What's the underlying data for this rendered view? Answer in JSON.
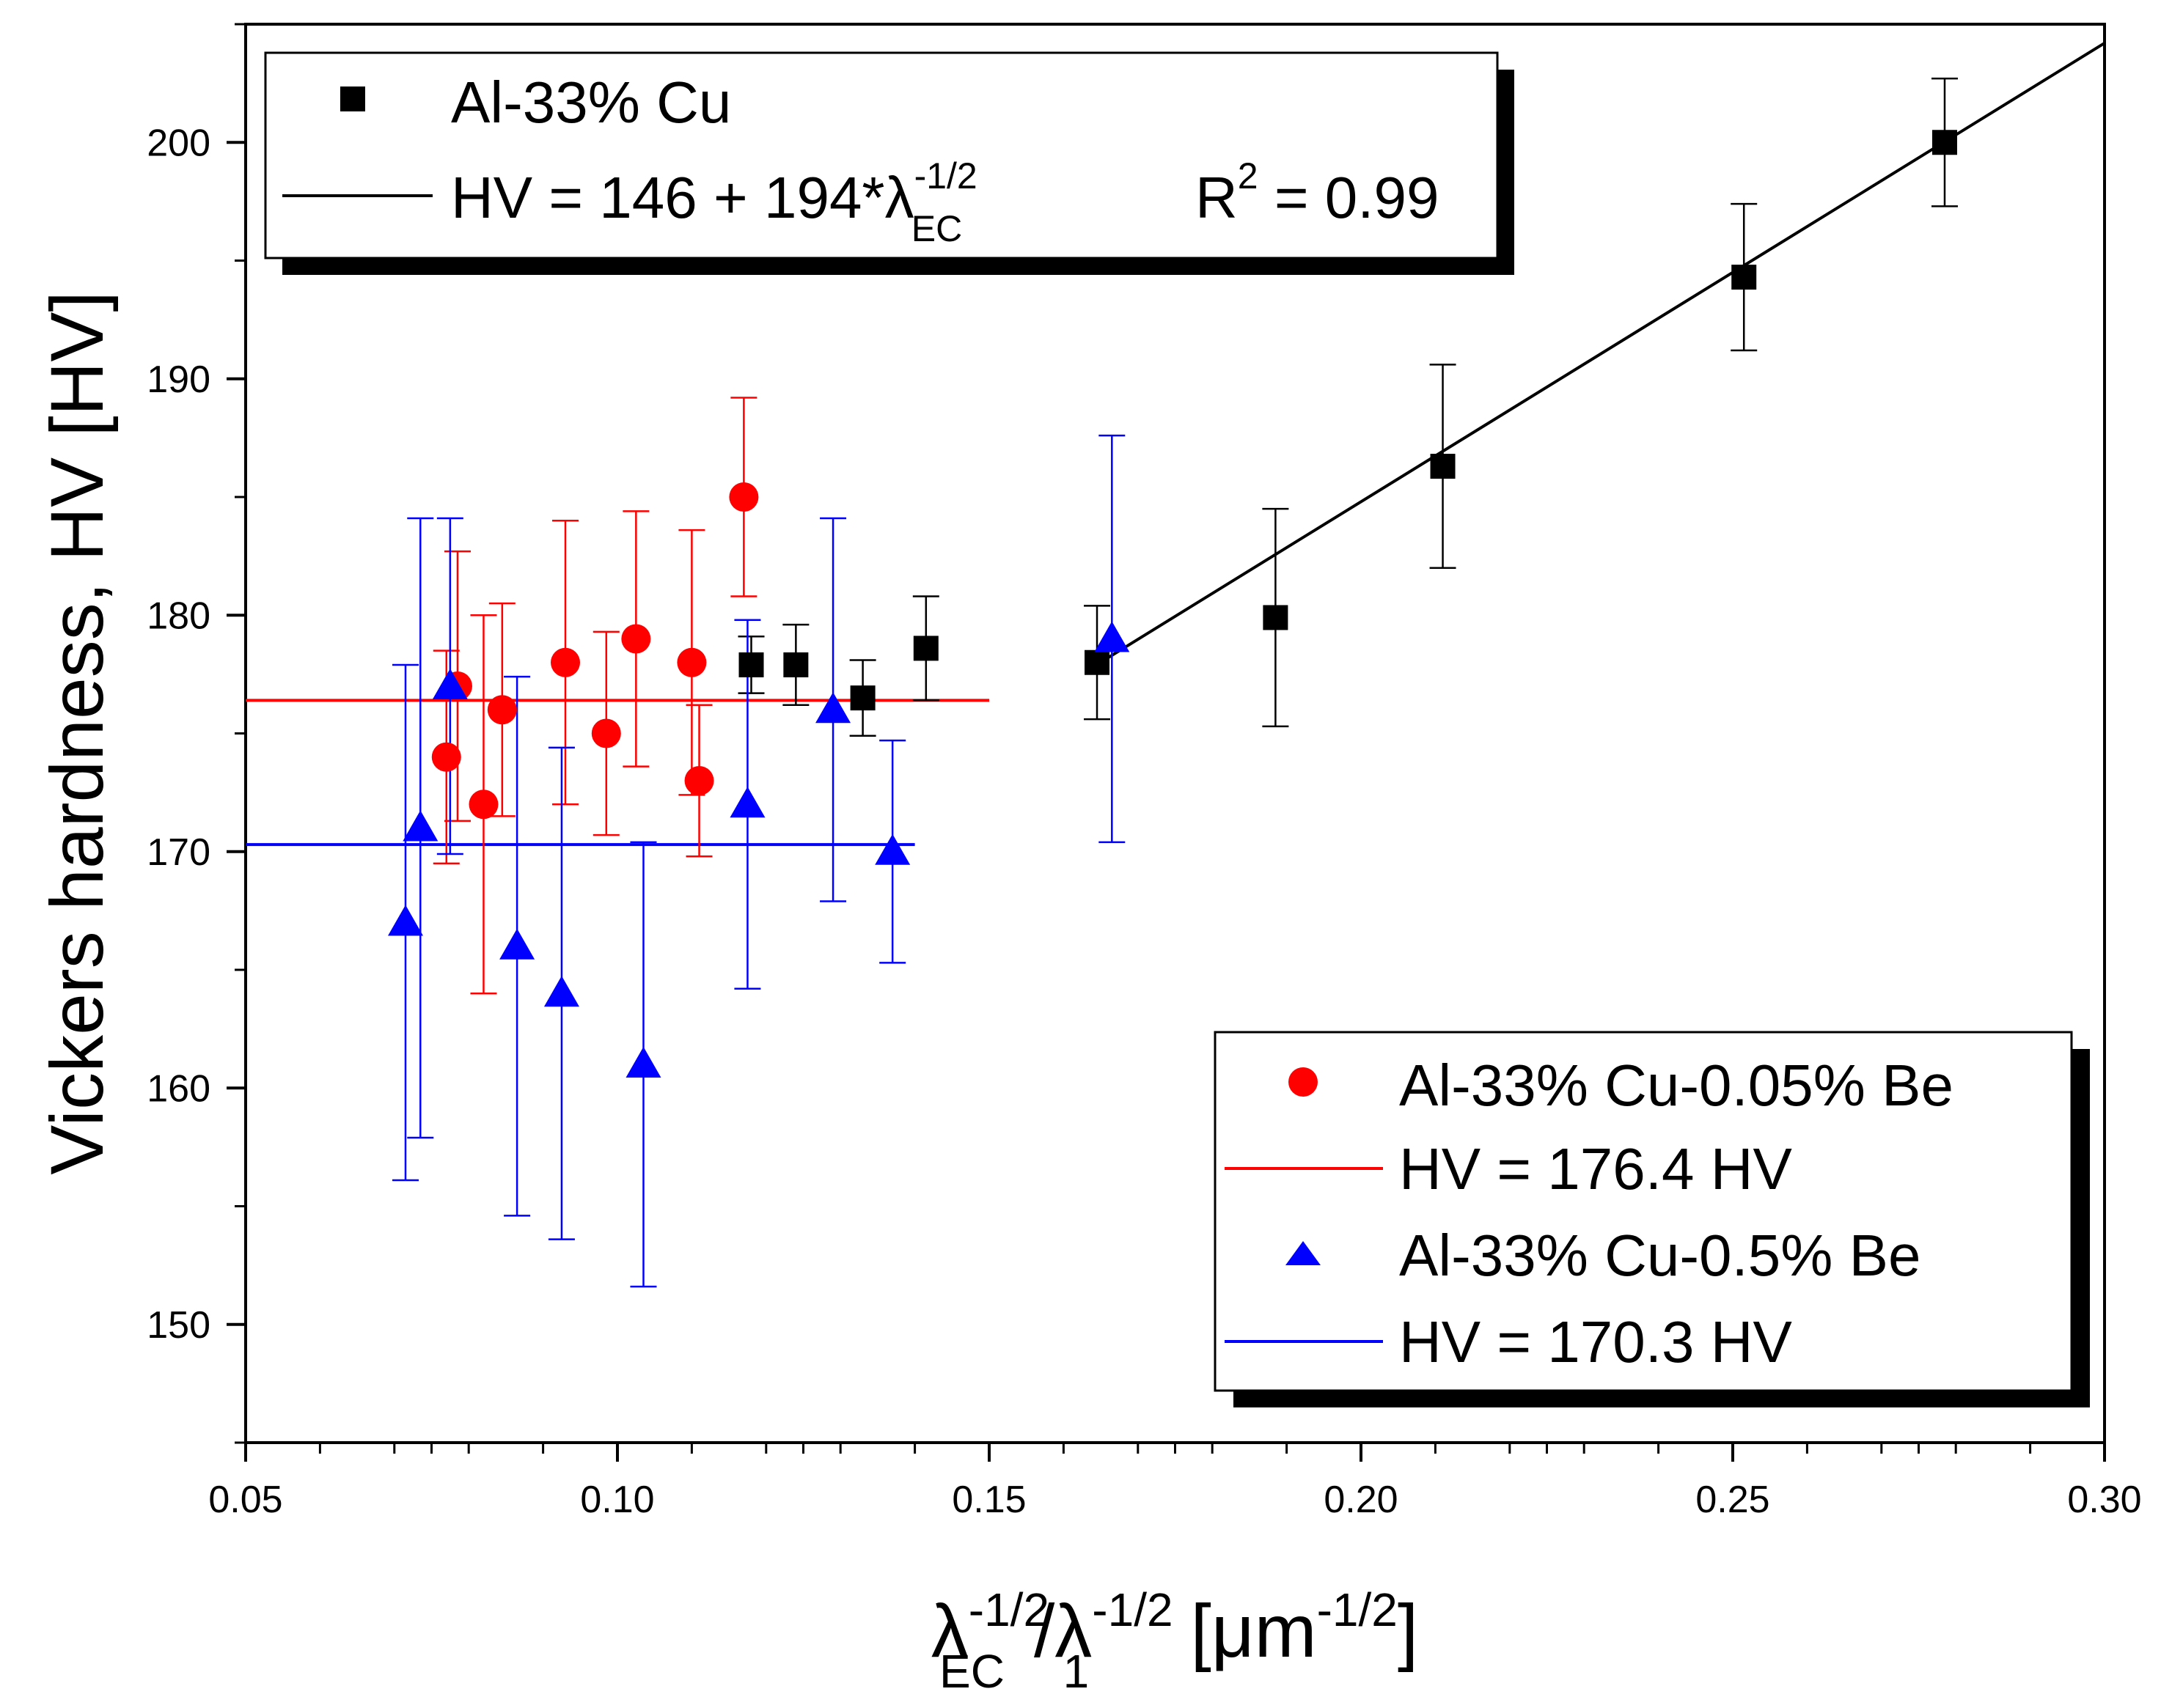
{
  "chart_data": {
    "type": "scatter",
    "title": "",
    "xlabel": {
      "base1": "λ",
      "sup1": "-1/2",
      "sub1": "EC",
      "sep": "/",
      "base2": "λ",
      "sup2": "-1/2",
      "sub2": "1",
      "unit_open": " [μm",
      "unit_sup": "-1/2",
      "unit_close": "]"
    },
    "ylabel": "Vickers hardness, HV [HV]",
    "xlim": [
      0.05,
      0.3
    ],
    "ylim": [
      145,
      205
    ],
    "x_ticks": [
      0.05,
      0.1,
      0.15,
      0.2,
      0.25,
      0.3
    ],
    "x_tick_labels": [
      "0.05",
      "0.10",
      "0.15",
      "0.20",
      "0.25",
      "0.30"
    ],
    "y_ticks": [
      150,
      160,
      170,
      180,
      190,
      200
    ],
    "y_tick_labels": [
      "150",
      "160",
      "170",
      "180",
      "190",
      "200"
    ],
    "grid": false,
    "series": [
      {
        "name": "Al-33% Cu",
        "marker": "square",
        "color": "#000000",
        "points": [
          {
            "x": 0.118,
            "y": 177.9,
            "err": 1.2
          },
          {
            "x": 0.124,
            "y": 177.9,
            "err": 1.7
          },
          {
            "x": 0.133,
            "y": 176.5,
            "err": 1.6
          },
          {
            "x": 0.1415,
            "y": 178.6,
            "err": 2.2
          },
          {
            "x": 0.1645,
            "y": 178.0,
            "err": 2.4
          },
          {
            "x": 0.1885,
            "y": 179.9,
            "err": 4.6
          },
          {
            "x": 0.211,
            "y": 186.3,
            "err": 4.3
          },
          {
            "x": 0.2515,
            "y": 194.3,
            "err": 3.1
          },
          {
            "x": 0.2785,
            "y": 200.0,
            "err": 2.7
          }
        ]
      },
      {
        "name": "Al-33% Cu-0.05% Be",
        "marker": "circle",
        "color": "#ff0000",
        "points": [
          {
            "x": 0.077,
            "y": 174.0,
            "err": 4.5
          },
          {
            "x": 0.0785,
            "y": 177.0,
            "err": 5.7
          },
          {
            "x": 0.082,
            "y": 172.0,
            "err": 8.0
          },
          {
            "x": 0.0845,
            "y": 176.0,
            "err": 4.5
          },
          {
            "x": 0.093,
            "y": 178.0,
            "err": 6.0
          },
          {
            "x": 0.0985,
            "y": 175.0,
            "err": 4.3
          },
          {
            "x": 0.1025,
            "y": 179.0,
            "err": 5.4
          },
          {
            "x": 0.11,
            "y": 178.0,
            "err": 5.6
          },
          {
            "x": 0.111,
            "y": 173.0,
            "err": 3.2
          },
          {
            "x": 0.117,
            "y": 185.0,
            "err": 4.2
          }
        ]
      },
      {
        "name": "Al-33% Cu-0.5% Be",
        "marker": "triangle",
        "color": "#0000ff",
        "points": [
          {
            "x": 0.0715,
            "y": 167.0,
            "err": 10.9
          },
          {
            "x": 0.0735,
            "y": 171.0,
            "err": 13.1
          },
          {
            "x": 0.0775,
            "y": 177.0,
            "err": 7.1
          },
          {
            "x": 0.0865,
            "y": 166.0,
            "err": 11.4
          },
          {
            "x": 0.0925,
            "y": 164.0,
            "err": 10.4
          },
          {
            "x": 0.1035,
            "y": 161.0,
            "err": 9.4
          },
          {
            "x": 0.1175,
            "y": 172.0,
            "err": 7.8
          },
          {
            "x": 0.129,
            "y": 176.0,
            "err": 8.1
          },
          {
            "x": 0.137,
            "y": 170.0,
            "err": 4.7
          },
          {
            "x": 0.1665,
            "y": 179.0,
            "err": 8.6
          }
        ]
      }
    ],
    "fit_lines": [
      {
        "name": "HV = 146 + 194*λEC^-1/2",
        "color": "#000000",
        "intercept": 146,
        "slope": 194,
        "x_range": [
          0.1645,
          0.3
        ]
      },
      {
        "name": "HV = 176.4 HV",
        "color": "#ff0000",
        "intercept": 176.4,
        "slope": 0,
        "x_range": [
          0.05,
          0.15
        ]
      },
      {
        "name": "HV = 170.3 HV",
        "color": "#0000ff",
        "intercept": 170.3,
        "slope": 0,
        "x_range": [
          0.05,
          0.14
        ]
      }
    ],
    "legends": [
      {
        "placement": "top-left",
        "entries": [
          {
            "kind": "marker",
            "marker": "square",
            "color": "#000000",
            "label": "Al-33% Cu"
          },
          {
            "kind": "line",
            "color": "#000000",
            "label_base": "HV = 146 + 194*λ",
            "label_sup": "-1/2",
            "label_sub": "EC",
            "label_extra": "R",
            "label_extra_sup": "2",
            "label_extra_tail": " = 0.99"
          }
        ]
      },
      {
        "placement": "bottom-right",
        "entries": [
          {
            "kind": "marker",
            "marker": "circle",
            "color": "#ff0000",
            "label": "Al-33% Cu-0.05% Be"
          },
          {
            "kind": "line",
            "color": "#ff0000",
            "label": "HV = 176.4 HV"
          },
          {
            "kind": "marker",
            "marker": "triangle",
            "color": "#0000ff",
            "label": "Al-33% Cu-0.5% Be"
          },
          {
            "kind": "line",
            "color": "#0000ff",
            "label": "HV = 170.3 HV"
          }
        ]
      }
    ]
  }
}
